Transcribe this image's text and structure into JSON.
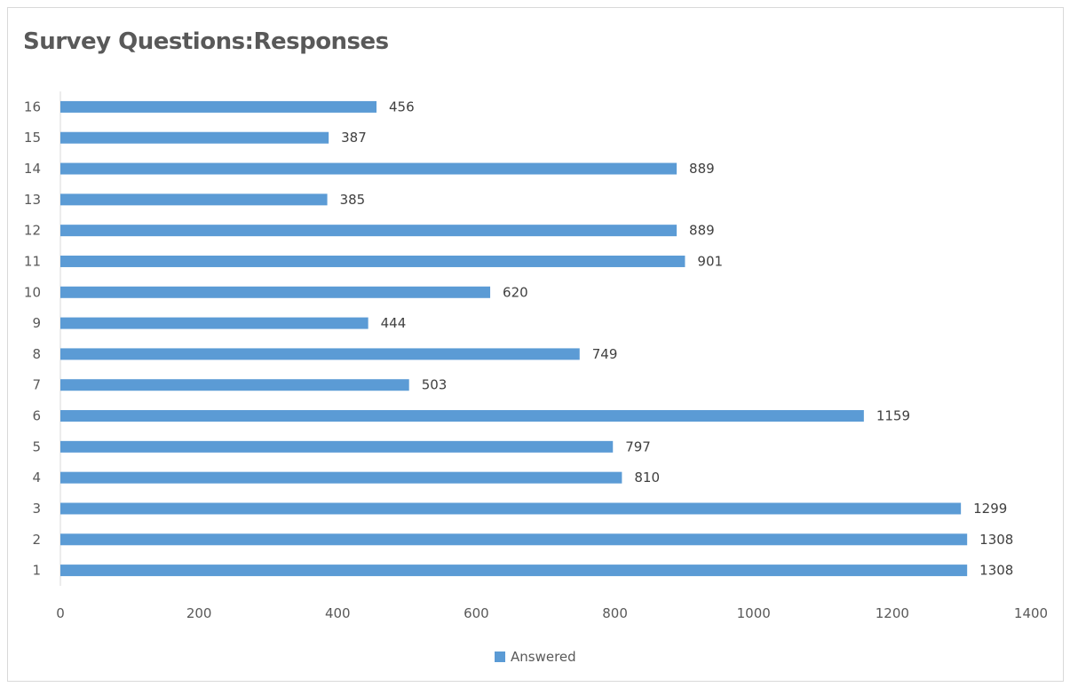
{
  "chart_data": {
    "type": "bar",
    "orientation": "horizontal",
    "title": "Survey Questions:Responses",
    "xlabel": "",
    "ylabel": "",
    "categories": [
      "1",
      "2",
      "3",
      "4",
      "5",
      "6",
      "7",
      "8",
      "9",
      "10",
      "11",
      "12",
      "13",
      "14",
      "15",
      "16"
    ],
    "series": [
      {
        "name": "Answered",
        "values": [
          1308,
          1308,
          1299,
          810,
          797,
          1159,
          503,
          749,
          444,
          620,
          901,
          889,
          385,
          889,
          387,
          456
        ]
      }
    ],
    "xlim": [
      0,
      1400
    ],
    "x_ticks": [
      0,
      200,
      400,
      600,
      800,
      1000,
      1200,
      1400
    ],
    "x_tick_labels": [
      "0",
      "200",
      "400",
      "600",
      "800",
      "1000",
      "1200",
      "1400"
    ],
    "grid": false,
    "data_labels": true,
    "legend_position": "bottom",
    "bar_color": "#5b9bd5"
  }
}
